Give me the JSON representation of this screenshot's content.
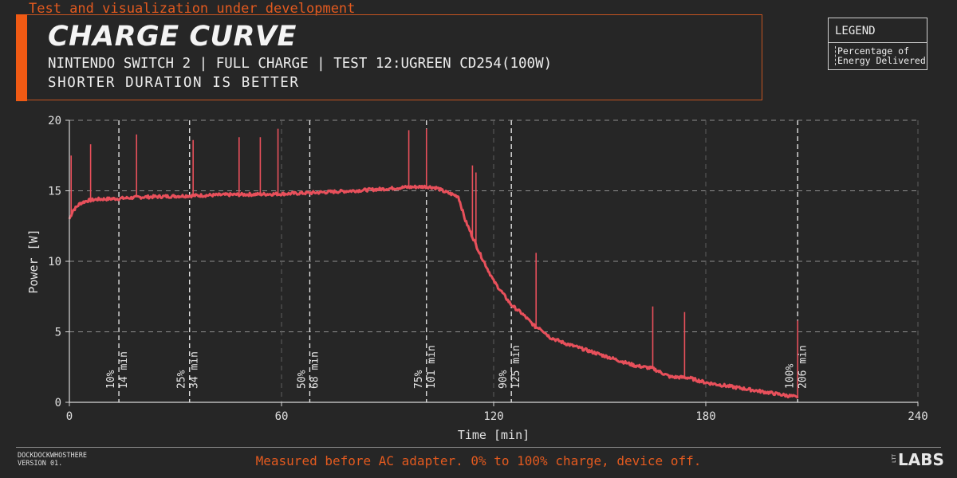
{
  "header": {
    "dev_note": "Test and visualization under development",
    "title": "CHARGE CURVE",
    "subtitle": "NINTENDO SWITCH 2 | FULL CHARGE | TEST 12:UGREEN CD254(100W)",
    "subtitle2": "SHORTER DURATION IS BETTER"
  },
  "legend": {
    "title": "LEGEND",
    "entry": "Percentage of\nEnergy Delivered"
  },
  "footer": {
    "credit": "DOCKDOCKWHOSTHERE\nVERSION 01.",
    "note": "Measured before AC adapter. 0% to 100% charge, device off.",
    "logo": "LABS",
    "logo_small": "LTT"
  },
  "colors": {
    "series": "#e8505b",
    "accent": "#f05a14",
    "background": "#262626"
  },
  "chart_data": {
    "type": "line",
    "xlabel": "Time [min]",
    "ylabel": "Power [W]",
    "xlim": [
      0,
      240
    ],
    "ylim": [
      0,
      20
    ],
    "xticks": [
      0,
      60,
      120,
      180,
      240
    ],
    "yticks": [
      0,
      5,
      10,
      15,
      20
    ],
    "grid": true,
    "series": [
      {
        "x": [
          0,
          1,
          3,
          5,
          8,
          14,
          20,
          34,
          45,
          60,
          68,
          80,
          90,
          95,
          101,
          104,
          106,
          110,
          112,
          116,
          120,
          125,
          128,
          132,
          133,
          136,
          140,
          150,
          160,
          165,
          170,
          175,
          180,
          190,
          200,
          205,
          206
        ],
        "y": [
          13.0,
          13.6,
          14.1,
          14.3,
          14.4,
          14.45,
          14.55,
          14.65,
          14.72,
          14.78,
          14.85,
          15.0,
          15.15,
          15.25,
          15.3,
          15.2,
          14.95,
          14.6,
          12.9,
          10.6,
          8.6,
          6.9,
          6.3,
          5.3,
          5.3,
          4.6,
          4.2,
          3.4,
          2.6,
          2.4,
          1.8,
          1.75,
          1.4,
          1.0,
          0.6,
          0.4,
          0.3
        ]
      }
    ],
    "spikes": [
      {
        "x": 0.5,
        "y": 17.5
      },
      {
        "x": 6,
        "y": 18.3
      },
      {
        "x": 19,
        "y": 19.0
      },
      {
        "x": 35,
        "y": 18.6
      },
      {
        "x": 48,
        "y": 18.8
      },
      {
        "x": 54,
        "y": 18.8
      },
      {
        "x": 59,
        "y": 19.4
      },
      {
        "x": 96,
        "y": 19.3
      },
      {
        "x": 101,
        "y": 19.4
      },
      {
        "x": 114,
        "y": 16.8
      },
      {
        "x": 115,
        "y": 16.3
      },
      {
        "x": 132,
        "y": 10.6
      },
      {
        "x": 165,
        "y": 6.8
      },
      {
        "x": 174,
        "y": 6.4
      },
      {
        "x": 206,
        "y": 5.8
      }
    ],
    "markers": [
      {
        "x": 14,
        "percent": "10%",
        "time": "14 min"
      },
      {
        "x": 34,
        "percent": "25%",
        "time": "34 min"
      },
      {
        "x": 68,
        "percent": "50%",
        "time": "68 min"
      },
      {
        "x": 101,
        "percent": "75%",
        "time": "101 min"
      },
      {
        "x": 125,
        "percent": "90%",
        "time": "125 min"
      },
      {
        "x": 206,
        "percent": "100%",
        "time": "206 min"
      }
    ]
  }
}
